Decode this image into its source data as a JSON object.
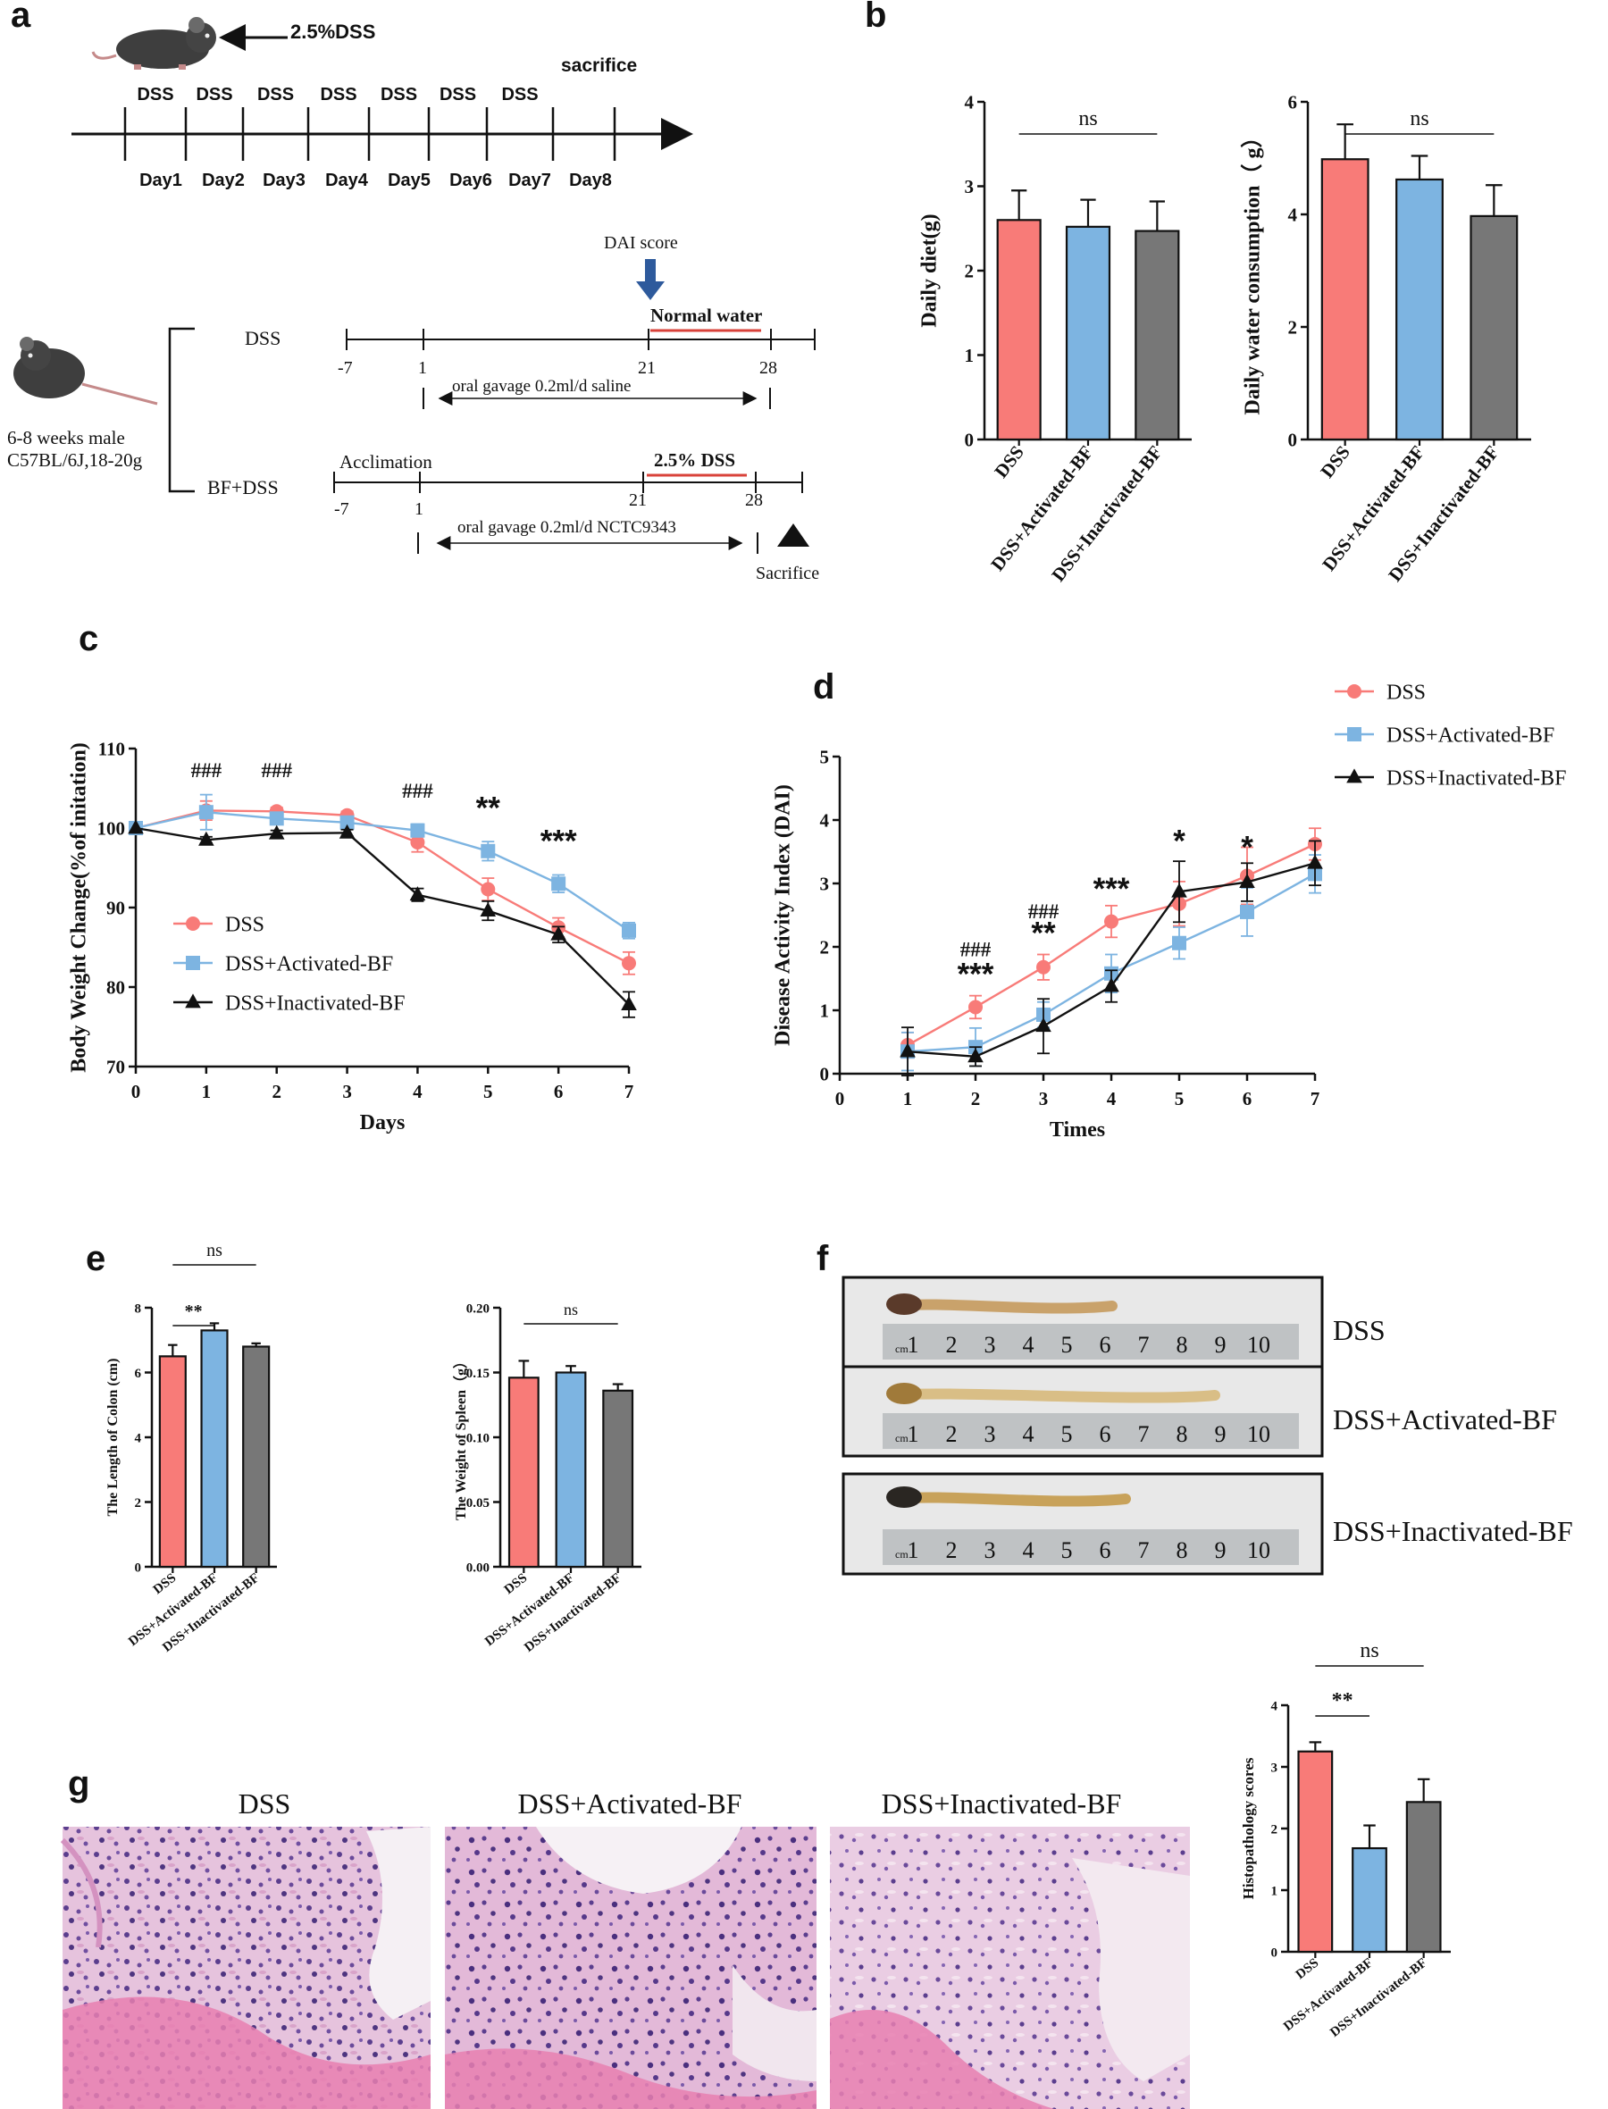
{
  "panel_labels": {
    "a": "a",
    "b": "b",
    "c": "c",
    "d": "d",
    "e": "e",
    "f": "f",
    "g": "g"
  },
  "colors": {
    "dss": "#F87B78",
    "activated": "#7DB4E1",
    "inactivated": "#777777",
    "black": "#111111",
    "red_line": "#D9423A",
    "arrow_blue": "#2E5A9C"
  },
  "groups": [
    "DSS",
    "DSS+Activated-BF",
    "DSS+Inactivated-BF"
  ],
  "panel_a": {
    "top": {
      "dss_text": "2.5%DSS",
      "sacrifice": "sacrifice",
      "dss_labels": [
        "DSS",
        "DSS",
        "DSS",
        "DSS",
        "DSS",
        "DSS",
        "DSS"
      ],
      "day_labels": [
        "Day1",
        "Day2",
        "Day3",
        "Day4",
        "Day5",
        "Day6",
        "Day7",
        "Day8"
      ]
    },
    "bottom": {
      "mouse_label_line1": "6-8 weeks male",
      "mouse_label_line2": "C57BL/6J,18-20g",
      "group_dss": "DSS",
      "group_bf": "BF+DSS",
      "dai_score": "DAI score",
      "normal_water": "Normal water",
      "dss_25": "2.5% DSS",
      "acclimation": "Acclimation",
      "ticks_row1": [
        "-7",
        "1",
        "21",
        "28"
      ],
      "ticks_row2": [
        "-7",
        "1",
        "21",
        "28"
      ],
      "gavage_saline": "oral gavage 0.2ml/d saline",
      "gavage_bf": "oral gavage 0.2ml/d NCTC9343",
      "sacrifice": "Sacrifice"
    }
  },
  "chart_data": [
    {
      "id": "b1",
      "type": "bar",
      "categories": [
        "DSS",
        "DSS+Activated-BF",
        "DSS+Inactivated-BF"
      ],
      "values": [
        2.6,
        2.52,
        2.47
      ],
      "errors": [
        0.35,
        0.32,
        0.35
      ],
      "ylabel": "Daily diet(g)",
      "ylim": [
        0,
        4
      ],
      "yticks": [
        "0",
        "1",
        "2",
        "3",
        "4"
      ],
      "annotations": [
        {
          "text": "ns",
          "from": 0,
          "to": 2
        }
      ]
    },
    {
      "id": "b2",
      "type": "bar",
      "categories": [
        "DSS",
        "DSS+Activated-BF",
        "DSS+Inactivated-BF"
      ],
      "values": [
        4.98,
        4.62,
        3.97
      ],
      "errors": [
        0.62,
        0.42,
        0.55
      ],
      "ylabel": "Daily water consumption（ g）",
      "ylim": [
        0,
        6
      ],
      "yticks": [
        "0",
        "2",
        "4",
        "6"
      ],
      "annotations": [
        {
          "text": "ns",
          "from": 0,
          "to": 2
        }
      ]
    },
    {
      "id": "c",
      "type": "line",
      "x": [
        0,
        1,
        2,
        3,
        4,
        5,
        6,
        7
      ],
      "series": [
        {
          "name": "DSS",
          "marker": "circle",
          "values": [
            100,
            102.2,
            102.1,
            101.6,
            98.2,
            92.3,
            87.5,
            83.0
          ],
          "errors": [
            0,
            1.2,
            0.5,
            0.5,
            1.2,
            1.4,
            1.2,
            1.4
          ]
        },
        {
          "name": "DSS+Activated-BF",
          "marker": "square",
          "values": [
            100,
            102.0,
            101.2,
            100.7,
            99.7,
            97.1,
            93.0,
            87.1
          ],
          "errors": [
            0,
            2.2,
            0.5,
            0.6,
            0.8,
            1.2,
            1.1,
            1.0
          ]
        },
        {
          "name": "DSS+Inactivated-BF",
          "marker": "triangle",
          "values": [
            100,
            98.5,
            99.3,
            99.4,
            91.6,
            89.6,
            86.6,
            77.8
          ],
          "errors": [
            0,
            0.4,
            0.4,
            0.4,
            0.8,
            1.2,
            1.0,
            1.6
          ]
        }
      ],
      "xlabel": "Days",
      "ylabel": "Body Weight Change(%of initation)",
      "xlim": [
        0,
        7
      ],
      "ylim": [
        70,
        110
      ],
      "yticks": [
        "70",
        "80",
        "90",
        "100",
        "110"
      ],
      "xticks": [
        "0",
        "1",
        "2",
        "3",
        "4",
        "5",
        "6",
        "7"
      ],
      "annotations": [
        {
          "text": "###",
          "x": 1,
          "y": 106.4
        },
        {
          "text": "###",
          "x": 2,
          "y": 106.4
        },
        {
          "text": "###",
          "x": 4,
          "y": 103.8
        },
        {
          "text": "**",
          "x": 5,
          "y": 101.2
        },
        {
          "text": "***",
          "x": 6,
          "y": 97.0
        }
      ],
      "legend_position": "lower-left"
    },
    {
      "id": "d",
      "type": "line",
      "x": [
        0,
        1,
        2,
        3,
        4,
        5,
        6,
        7
      ],
      "series": [
        {
          "name": "DSS",
          "marker": "circle",
          "x": [
            1,
            2,
            3,
            4,
            5,
            6,
            7
          ],
          "values": [
            0.45,
            1.05,
            1.68,
            2.4,
            2.68,
            3.12,
            3.62
          ],
          "errors": [
            0.2,
            0.18,
            0.2,
            0.25,
            0.35,
            0.45,
            0.25
          ]
        },
        {
          "name": "DSS+Activated-BF",
          "marker": "square",
          "x": [
            1,
            2,
            3,
            4,
            5,
            6,
            7
          ],
          "values": [
            0.35,
            0.42,
            0.93,
            1.58,
            2.06,
            2.55,
            3.15
          ],
          "errors": [
            0.3,
            0.3,
            0.2,
            0.3,
            0.25,
            0.38,
            0.3
          ]
        },
        {
          "name": "DSS+Inactivated-BF",
          "marker": "triangle",
          "x": [
            1,
            2,
            3,
            4,
            5,
            6,
            7
          ],
          "values": [
            0.35,
            0.27,
            0.75,
            1.38,
            2.87,
            3.02,
            3.32
          ],
          "errors": [
            0.38,
            0.15,
            0.43,
            0.25,
            0.48,
            0.3,
            0.35
          ]
        }
      ],
      "xlabel": "Times",
      "ylabel": "Disease Activity Index (DAI)",
      "xlim": [
        0,
        7
      ],
      "ylim": [
        0,
        5
      ],
      "yticks": [
        "0",
        "1",
        "2",
        "3",
        "4",
        "5"
      ],
      "xticks": [
        "0",
        "1",
        "2",
        "3",
        "4",
        "5",
        "6",
        "7"
      ],
      "annotations": [
        {
          "text": "###",
          "x": 2,
          "y": 1.85
        },
        {
          "text": "***",
          "x": 2,
          "y": 1.4
        },
        {
          "text": "###",
          "x": 3,
          "y": 2.45
        },
        {
          "text": "**",
          "x": 3,
          "y": 2.05
        },
        {
          "text": "***",
          "x": 4,
          "y": 2.75
        },
        {
          "text": "*",
          "x": 5,
          "y": 3.5
        },
        {
          "text": "*",
          "x": 6,
          "y": 3.4
        }
      ],
      "legend_position": "top-right"
    },
    {
      "id": "e1",
      "type": "bar",
      "categories": [
        "DSS",
        "DSS+Activated-BF",
        "DSS+Inactivated-BF"
      ],
      "values": [
        6.5,
        7.3,
        6.8
      ],
      "errors": [
        0.35,
        0.22,
        0.1
      ],
      "ylabel": "The Length of Colon (cm)",
      "ylim": [
        0,
        8
      ],
      "yticks": [
        "0",
        "2",
        "4",
        "6",
        "8"
      ],
      "annotations": [
        {
          "text": "**",
          "from": 0,
          "to": 1,
          "level": 1
        },
        {
          "text": "ns",
          "from": 0,
          "to": 2,
          "level": 2
        }
      ]
    },
    {
      "id": "e2",
      "type": "bar",
      "categories": [
        "DSS",
        "DSS+Activated-BF",
        "DSS+Inactivated-BF"
      ],
      "values": [
        0.146,
        0.15,
        0.136
      ],
      "errors": [
        0.013,
        0.005,
        0.005
      ],
      "ylabel": "The Weight of Spleen（g）",
      "ylim": [
        0,
        0.2
      ],
      "yticks": [
        "0.00",
        "0.05",
        "0.10",
        "0.15",
        "0.20"
      ],
      "annotations": [
        {
          "text": "ns",
          "from": 0,
          "to": 2
        }
      ]
    },
    {
      "id": "g2",
      "type": "bar",
      "categories": [
        "DSS",
        "DSS+Activated-BF",
        "DSS+Inactivated-BF"
      ],
      "values": [
        3.25,
        1.68,
        2.43
      ],
      "errors": [
        0.15,
        0.37,
        0.37
      ],
      "ylabel": "Histopathology scores",
      "ylim": [
        0,
        4
      ],
      "yticks": [
        "0",
        "1",
        "2",
        "3",
        "4"
      ],
      "annotations": [
        {
          "text": "**",
          "from": 0,
          "to": 1,
          "level": 1
        },
        {
          "text": "ns",
          "from": 0,
          "to": 2,
          "level": 2
        }
      ]
    }
  ],
  "panel_f": {
    "labels": [
      "DSS",
      "DSS+Activated-BF",
      "DSS+Inactivated-BF"
    ],
    "ruler_numbers": [
      "1",
      "2",
      "3",
      "4",
      "5",
      "6",
      "7",
      "8",
      "9",
      "10"
    ],
    "ruler_unit": "cm"
  },
  "panel_g": {
    "titles": [
      "DSS",
      "DSS+Activated-BF",
      "DSS+Inactivated-BF"
    ]
  }
}
